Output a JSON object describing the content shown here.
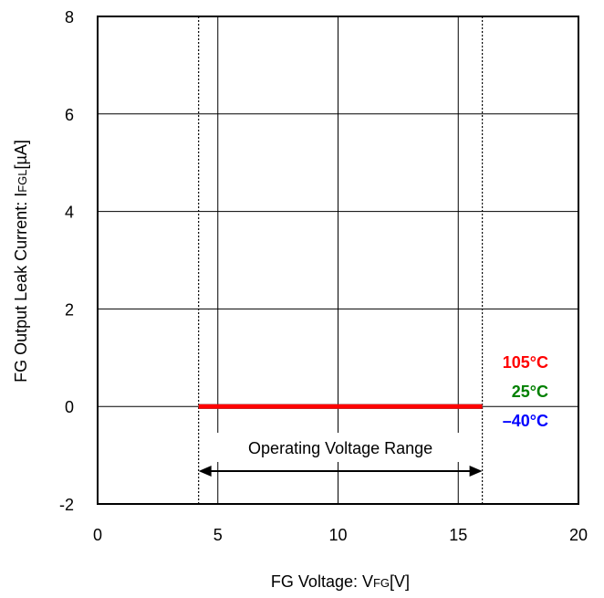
{
  "chart_data": {
    "type": "line",
    "xlabel": {
      "prefix": "FG Voltage: V",
      "subscript": "FG",
      "suffix": "[V]"
    },
    "ylabel": {
      "prefix": "FG Output Leak Current: I",
      "subscript": "FGL",
      "suffix": "[µA]"
    },
    "xlim": [
      0,
      20
    ],
    "ylim": [
      -2,
      8
    ],
    "x_ticks": [
      "0",
      "5",
      "10",
      "15",
      "20"
    ],
    "y_ticks": [
      "-2",
      "0",
      "2",
      "4",
      "6",
      "8"
    ],
    "x_tick_values": [
      0,
      5,
      10,
      15,
      20
    ],
    "y_tick_values": [
      -2,
      0,
      2,
      4,
      6,
      8
    ],
    "grid": true,
    "series": [
      {
        "name": "105°C",
        "color": "#ff0000",
        "x": [
          4.2,
          16.0
        ],
        "y": [
          0,
          0
        ]
      },
      {
        "name": "25°C",
        "color": "#008000",
        "x": [
          4.2,
          16.0
        ],
        "y": [
          0,
          0
        ]
      },
      {
        "name": "–40°C",
        "color": "#0000ff",
        "x": [
          4.2,
          16.0
        ],
        "y": [
          0,
          0
        ]
      }
    ],
    "operating_range": {
      "label": "Operating Voltage Range",
      "x_min": 4.2,
      "x_max": 16.0
    }
  }
}
